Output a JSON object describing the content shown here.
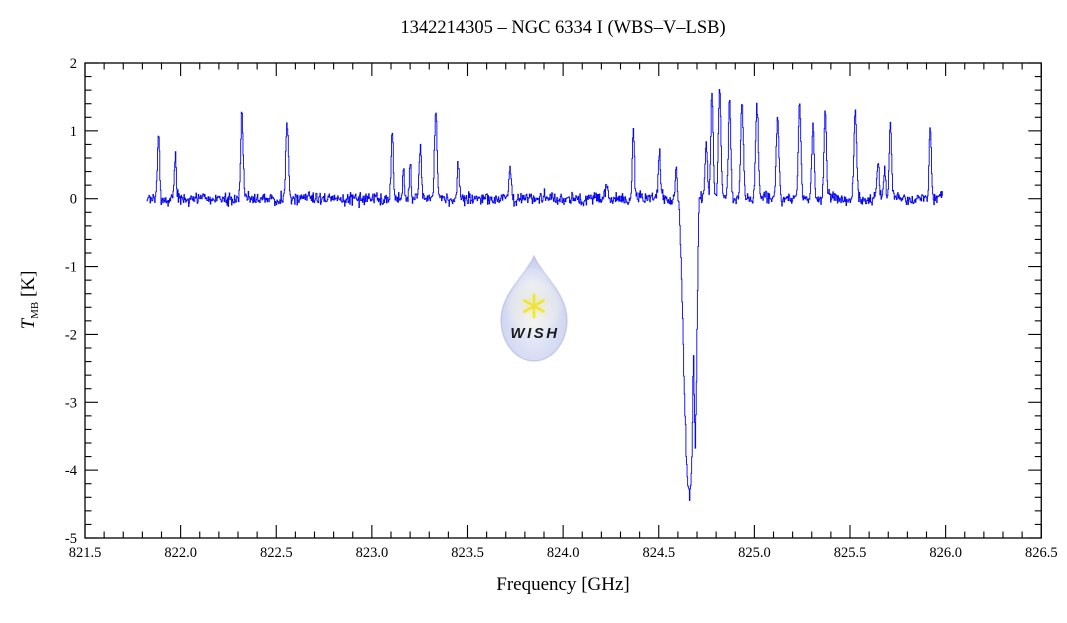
{
  "title": "1342214305 – NGC 6334 I (WBS–V–LSB)",
  "watermark": {
    "text": "WISH",
    "symbol": "six-ray-star",
    "drop_color": "#aeb8e6",
    "accent_color": "#f2e73e"
  },
  "chart_data": {
    "type": "line",
    "title": "1342214305 – NGC 6334 I (WBS–V–LSB)",
    "xlabel": "Frequency [GHz]",
    "ylabel": "T_MB [K]",
    "ylabel_parts": {
      "symbol": "T",
      "sub": "MB",
      "unit": " [K]"
    },
    "xlim": [
      821.5,
      826.5
    ],
    "ylim": [
      -5,
      2
    ],
    "x_major_ticks": [
      821.5,
      822.0,
      822.5,
      823.0,
      823.5,
      824.0,
      824.5,
      825.0,
      825.5,
      826.0,
      826.5
    ],
    "x_tick_labels": [
      "821.5",
      "822.0",
      "822.5",
      "823.0",
      "823.5",
      "824.0",
      "824.5",
      "825.0",
      "825.5",
      "826.0",
      "826.5"
    ],
    "x_minor_step": 0.1,
    "y_major_ticks": [
      2,
      1,
      0,
      -1,
      -2,
      -3,
      -4,
      -5
    ],
    "y_tick_labels": [
      "2",
      "1",
      "0",
      "-1",
      "-2",
      "-3",
      "-4",
      "-5"
    ],
    "y_minor_step": 0.2,
    "grid": false,
    "legend": null,
    "line_color": "#0808ee",
    "background": "#ffffff",
    "data_range_ghz": [
      821.822,
      825.986
    ],
    "channel_width_ghz": 0.003,
    "baseline_k": 0.0,
    "noise": {
      "rms_k": 0.042,
      "seed": 20
    },
    "emission_lines": [
      [
        821.883,
        0.95,
        0.0055
      ],
      [
        821.971,
        0.63,
        0.005
      ],
      [
        822.319,
        1.27,
        0.006
      ],
      [
        822.555,
        1.12,
        0.0065
      ],
      [
        823.105,
        1.0,
        0.0055
      ],
      [
        823.164,
        0.5,
        0.0045
      ],
      [
        823.199,
        0.55,
        0.0045
      ],
      [
        823.252,
        0.72,
        0.006
      ],
      [
        823.333,
        1.33,
        0.0065
      ],
      [
        823.45,
        0.52,
        0.0055
      ],
      [
        823.722,
        0.45,
        0.006
      ],
      [
        824.224,
        0.24,
        0.007
      ],
      [
        824.366,
        1.0,
        0.0055
      ],
      [
        824.502,
        0.64,
        0.006
      ],
      [
        824.59,
        0.45,
        0.0045
      ],
      [
        824.747,
        0.85,
        0.006
      ],
      [
        824.777,
        1.58,
        0.006
      ],
      [
        824.817,
        1.65,
        0.0065
      ],
      [
        824.869,
        1.45,
        0.0065
      ],
      [
        824.934,
        1.42,
        0.007
      ],
      [
        825.012,
        1.38,
        0.007
      ],
      [
        825.12,
        1.22,
        0.007
      ],
      [
        825.235,
        1.46,
        0.0065
      ],
      [
        825.305,
        1.1,
        0.006
      ],
      [
        825.369,
        1.28,
        0.006
      ],
      [
        825.526,
        1.23,
        0.007
      ],
      [
        825.645,
        0.5,
        0.006
      ],
      [
        825.68,
        0.45,
        0.005
      ],
      [
        825.71,
        1.12,
        0.006
      ],
      [
        825.918,
        1.05,
        0.0055
      ]
    ],
    "absorption_profile": [
      [
        824.604,
        0.0
      ],
      [
        824.614,
        -0.8
      ],
      [
        824.624,
        -1.8
      ],
      [
        824.634,
        -3.0
      ],
      [
        824.644,
        -3.9
      ],
      [
        824.652,
        -4.25
      ],
      [
        824.66,
        -4.37
      ],
      [
        824.667,
        -4.2
      ],
      [
        824.673,
        -3.7
      ],
      [
        824.678,
        -2.6
      ],
      [
        824.681,
        -2.35
      ],
      [
        824.685,
        -3.1
      ],
      [
        824.69,
        -3.6
      ],
      [
        824.695,
        -2.9
      ],
      [
        824.7,
        -1.7
      ],
      [
        824.706,
        -0.5
      ],
      [
        824.711,
        0.1
      ]
    ]
  }
}
